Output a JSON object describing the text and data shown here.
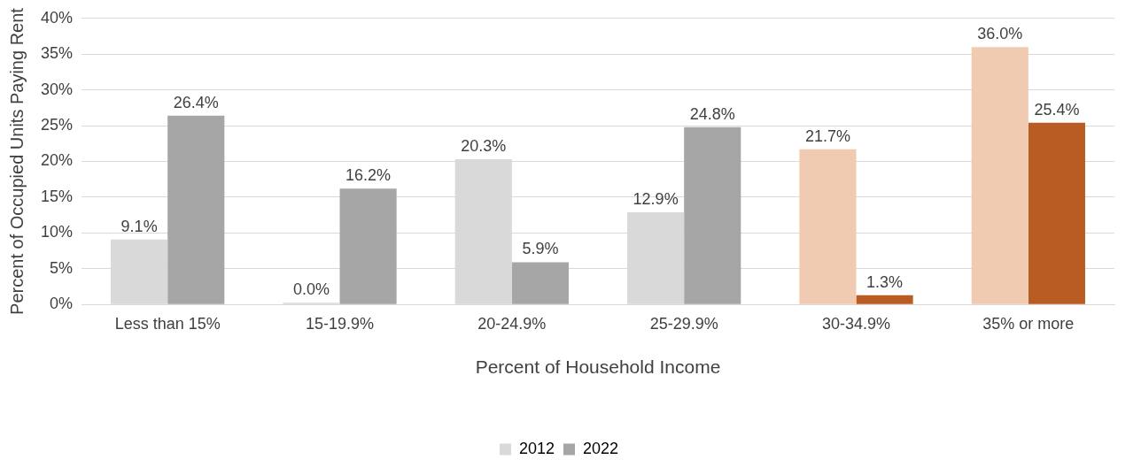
{
  "chart_data": {
    "type": "bar",
    "xlabel": "Percent of Household Income",
    "ylabel": "Percent of Occupied Units Paying Rent",
    "categories": [
      "Less than 15%",
      "15-19.9%",
      "20-24.9%",
      "25-29.9%",
      "30-34.9%",
      "35% or more"
    ],
    "series": [
      {
        "name": "2012",
        "color": "#d9d9d9",
        "colors": [
          "#d9d9d9",
          "#d9d9d9",
          "#d9d9d9",
          "#d9d9d9",
          "#f0cbb1",
          "#f0cbb1"
        ],
        "values": [
          9.1,
          0.0,
          20.3,
          12.9,
          21.7,
          36.0
        ],
        "value_labels": [
          "9.1%",
          "0.0%",
          "20.3%",
          "12.9%",
          "21.7%",
          "36.0%"
        ]
      },
      {
        "name": "2022",
        "color": "#a6a6a6",
        "colors": [
          "#a6a6a6",
          "#a6a6a6",
          "#a6a6a6",
          "#a6a6a6",
          "#b85c23",
          "#b85c23"
        ],
        "values": [
          26.4,
          16.2,
          5.9,
          24.8,
          1.3,
          25.4
        ],
        "value_labels": [
          "26.4%",
          "16.2%",
          "5.9%",
          "24.8%",
          "1.3%",
          "25.4%"
        ]
      }
    ],
    "ylim": [
      0,
      40
    ],
    "yticks": [
      {
        "value": 0,
        "label": "0%"
      },
      {
        "value": 5,
        "label": "5%"
      },
      {
        "value": 10,
        "label": "10%"
      },
      {
        "value": 15,
        "label": "15%"
      },
      {
        "value": 20,
        "label": "20%"
      },
      {
        "value": 25,
        "label": "25%"
      },
      {
        "value": 30,
        "label": "30%"
      },
      {
        "value": 35,
        "label": "35%"
      },
      {
        "value": 40,
        "label": "40%"
      }
    ],
    "grid": "y",
    "legend": "bottom"
  }
}
